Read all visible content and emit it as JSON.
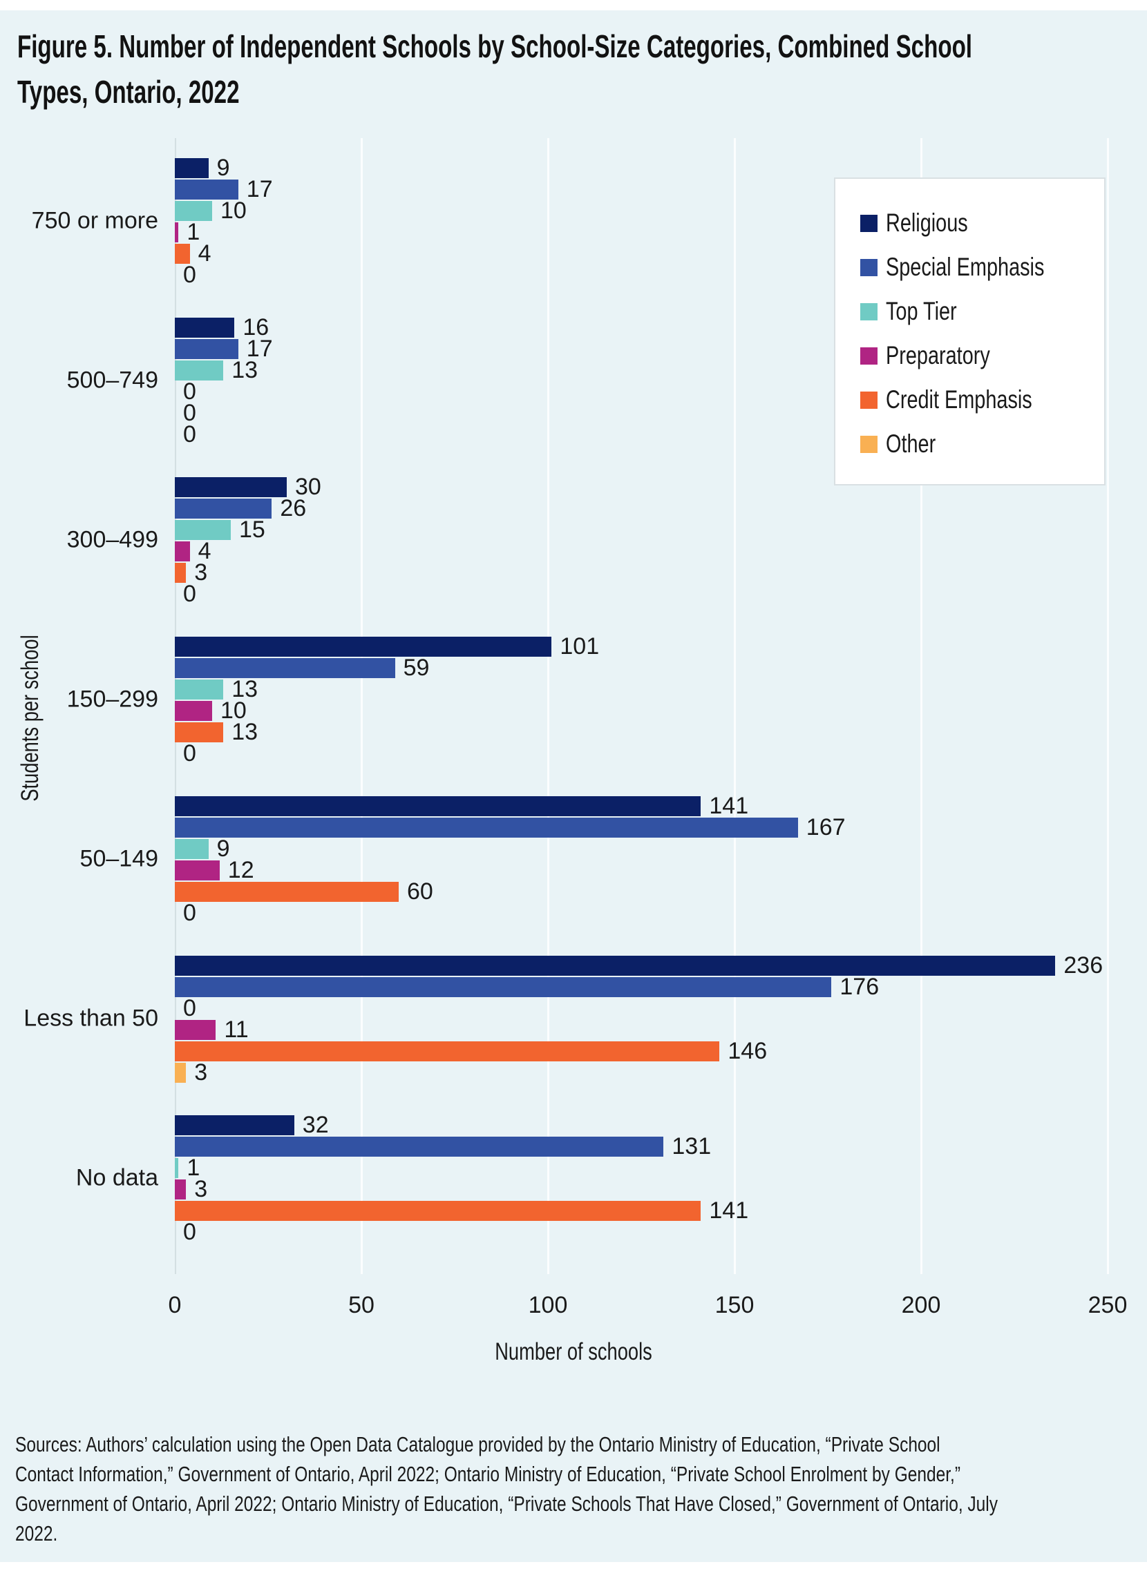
{
  "figure": {
    "title_lines": [
      "Figure 5. Number of Independent Schools by School-Size Categories, Combined School",
      "Types, Ontario, 2022"
    ],
    "source_lines": [
      "Sources: Authors’ calculation using the Open Data Catalogue provided by the Ontario Ministry of Education, “Private School",
      "Contact Information,” Government of Ontario, April 2022; Ontario Ministry of Education, “Private School Enrolment by Gender,”",
      "Government of Ontario, April 2022; Ontario Ministry of Education, “Private Schools That Have Closed,” Government of Ontario, July",
      "2022."
    ]
  },
  "chart_data": {
    "type": "bar",
    "orientation": "horizontal",
    "title": "Figure 5. Number of Independent Schools by School-Size Categories, Combined School Types, Ontario, 2022",
    "xlabel": "Number of schools",
    "ylabel": "Students per school",
    "xlim": [
      0,
      250
    ],
    "xticks": [
      0,
      50,
      100,
      150,
      200,
      250
    ],
    "grid": "vertical-gridlines",
    "legend_position": "top-right",
    "categories": [
      "750 or more",
      "500–749",
      "300–499",
      "150–299",
      "50–149",
      "Less than 50",
      "No data"
    ],
    "series": [
      {
        "name": "Religious",
        "color": "#0b2066",
        "values": [
          9,
          16,
          30,
          101,
          141,
          236,
          32
        ]
      },
      {
        "name": "Special Emphasis",
        "color": "#3252a3",
        "values": [
          17,
          17,
          26,
          59,
          167,
          176,
          131
        ]
      },
      {
        "name": "Top Tier",
        "color": "#70cbc4",
        "values": [
          10,
          13,
          15,
          13,
          9,
          0,
          1
        ]
      },
      {
        "name": "Preparatory",
        "color": "#b02483",
        "values": [
          1,
          0,
          4,
          10,
          12,
          11,
          3
        ]
      },
      {
        "name": "Credit Emphasis",
        "color": "#f2642f",
        "values": [
          4,
          0,
          3,
          13,
          60,
          146,
          141
        ]
      },
      {
        "name": "Other",
        "color": "#f9b053",
        "values": [
          0,
          0,
          0,
          0,
          0,
          3,
          0
        ]
      }
    ]
  },
  "colors": {
    "panel_background": "#e9f3f6",
    "gridline": "#fbfdfe",
    "axis_line": "#d3dfe2",
    "text": "#1a1a1a",
    "legend_background": "#ffffff",
    "legend_border": "#d9e0e3"
  }
}
